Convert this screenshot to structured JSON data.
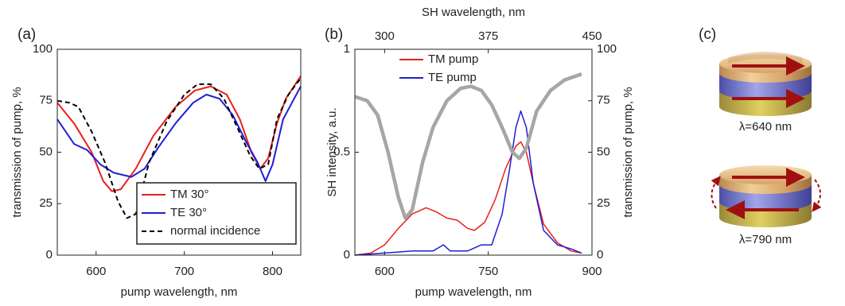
{
  "chart_data": [
    {
      "type": "line",
      "panel_label": "(a)",
      "x_label": "pump wavelength, nm",
      "y_label": "transmission of pump, %",
      "xlim": [
        556,
        832
      ],
      "xticks": [
        600,
        700,
        800
      ],
      "ylim": [
        0,
        100
      ],
      "yticks": [
        0,
        25,
        50,
        75,
        100
      ],
      "legend": "lower right",
      "legend_box": true,
      "series": [
        {
          "name": "TM 30°",
          "color": "#e8201e",
          "linestyle": "solid",
          "line_width": 2,
          "x": [
            556,
            575,
            595,
            608,
            618,
            628,
            645,
            665,
            690,
            712,
            730,
            748,
            763,
            776,
            786,
            795,
            805,
            815,
            832
          ],
          "values": [
            74,
            64,
            50,
            36,
            31,
            32,
            42,
            58,
            72,
            80,
            82,
            78,
            66,
            50,
            42,
            47,
            64,
            76,
            87
          ]
        },
        {
          "name": "TE 30°",
          "color": "#1f1fd6",
          "linestyle": "solid",
          "line_width": 2,
          "x": [
            556,
            575,
            590,
            605,
            620,
            640,
            655,
            670,
            690,
            710,
            725,
            740,
            755,
            770,
            783,
            792,
            800,
            812,
            822,
            832
          ],
          "values": [
            66,
            54,
            51,
            44,
            40,
            38,
            42,
            52,
            64,
            74,
            78,
            76,
            68,
            55,
            45,
            36,
            44,
            66,
            74,
            82
          ]
        },
        {
          "name": "normal incidence",
          "color": "#000000",
          "linestyle": "dashed",
          "line_width": 2,
          "x": [
            556,
            570,
            580,
            595,
            610,
            625,
            635,
            645,
            660,
            680,
            700,
            715,
            730,
            745,
            760,
            775,
            785,
            795,
            805,
            818,
            832
          ],
          "values": [
            75,
            74,
            72,
            60,
            45,
            26,
            18,
            20,
            45,
            65,
            78,
            83,
            83,
            76,
            62,
            48,
            42,
            44,
            66,
            78,
            86
          ]
        }
      ]
    },
    {
      "type": "line",
      "panel_label": "(b)",
      "x_label": "pump wavelength, nm",
      "x2_label": "SH wavelength, nm",
      "y_label": "SH intensity, a.u.",
      "y2_label": "transmission of pump, %",
      "xlim": [
        557,
        900
      ],
      "xticks": [
        600,
        750,
        900
      ],
      "x2lim": [
        278.5,
        450
      ],
      "x2ticks": [
        300,
        375,
        450
      ],
      "ylim": [
        0,
        1
      ],
      "yticks": [
        0,
        0.5,
        1
      ],
      "y2lim": [
        0,
        100
      ],
      "y2ticks": [
        0,
        25,
        50,
        75,
        100
      ],
      "legend": "upper left",
      "legend_box": false,
      "series": [
        {
          "name": "TM pump",
          "color": "#e8201e",
          "linestyle": "solid",
          "line_width": 1.5,
          "x": [
            557,
            580,
            600,
            620,
            640,
            660,
            675,
            690,
            705,
            720,
            730,
            745,
            760,
            775,
            790,
            797,
            805,
            815,
            830,
            850,
            870,
            885
          ],
          "values": [
            0,
            0.01,
            0.05,
            0.13,
            0.2,
            0.23,
            0.21,
            0.18,
            0.17,
            0.13,
            0.12,
            0.16,
            0.27,
            0.42,
            0.53,
            0.55,
            0.5,
            0.35,
            0.15,
            0.06,
            0.02,
            0.01
          ]
        },
        {
          "name": "TE pump",
          "color": "#1f1fd6",
          "linestyle": "solid",
          "line_width": 1.5,
          "x": [
            557,
            600,
            640,
            670,
            685,
            695,
            720,
            740,
            755,
            770,
            780,
            790,
            797,
            805,
            815,
            830,
            850,
            870,
            885
          ],
          "values": [
            0,
            0.01,
            0.02,
            0.02,
            0.05,
            0.02,
            0.02,
            0.05,
            0.05,
            0.2,
            0.4,
            0.62,
            0.7,
            0.62,
            0.35,
            0.12,
            0.05,
            0.03,
            0.01
          ]
        },
        {
          "color": "#a6a6a6",
          "axis": "y2",
          "linestyle": "solid",
          "line_width": 4.5,
          "x": [
            557,
            575,
            590,
            605,
            620,
            630,
            640,
            655,
            670,
            690,
            710,
            725,
            740,
            755,
            770,
            785,
            795,
            805,
            820,
            840,
            860,
            885
          ],
          "values": [
            77,
            75,
            68,
            50,
            28,
            18,
            22,
            45,
            62,
            75,
            81,
            82,
            80,
            73,
            62,
            50,
            47,
            52,
            70,
            80,
            85,
            88
          ]
        }
      ]
    }
  ],
  "panel_c": {
    "label": "(c)",
    "captions": [
      "λ=640 nm",
      "λ=790 nm"
    ]
  }
}
